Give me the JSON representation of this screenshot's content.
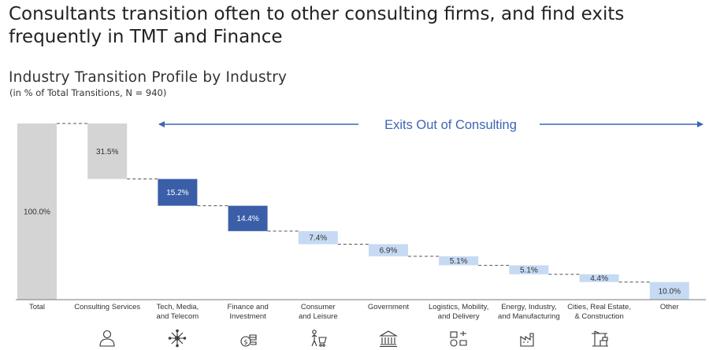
{
  "headline": {
    "line1": "Consultants transition often to other consulting firms, and find exits",
    "line2": "frequently in TMT and Finance"
  },
  "chart_data": {
    "type": "waterfall",
    "title": "Industry Transition Profile by Industry",
    "subtitle": "(in % of Total Transitions, N = 940)",
    "annotation": "Exits Out of Consulting",
    "ylim": [
      0,
      100
    ],
    "unit": "%",
    "categories": [
      "Total",
      "Consulting Services",
      "Tech, Media,\nand Telecom",
      "Finance and\nInvestment",
      "Consumer\nand Leisure",
      "Government",
      "Logistics, Mobility,\nand Delivery",
      "Energy, Industry,\nand Manufacturing",
      "Cities, Real Estate,\n& Construction",
      "Other"
    ],
    "values": [
      100.0,
      31.5,
      15.2,
      14.4,
      7.4,
      6.9,
      5.1,
      5.1,
      4.4,
      10.0
    ],
    "labels": [
      "100.0%",
      "31.5%",
      "15.2%",
      "14.4%",
      "7.4%",
      "6.9%",
      "5.1%",
      "5.1%",
      "4.4%",
      "10.0%"
    ],
    "kinds": [
      "total",
      "step",
      "highlight",
      "highlight",
      "light",
      "light",
      "light",
      "light",
      "light",
      "light"
    ],
    "icons": [
      "",
      "person-icon",
      "network-icon",
      "coins-icon",
      "shopping-icon",
      "government-building-icon",
      "logistics-icon",
      "factory-icon",
      "crane-icon",
      ""
    ]
  },
  "colors": {
    "total": "#d4d4d4",
    "step": "#d4d4d4",
    "highlight": "#3b5ea8",
    "light": "#c6daf3",
    "accent": "#3d66b5"
  }
}
